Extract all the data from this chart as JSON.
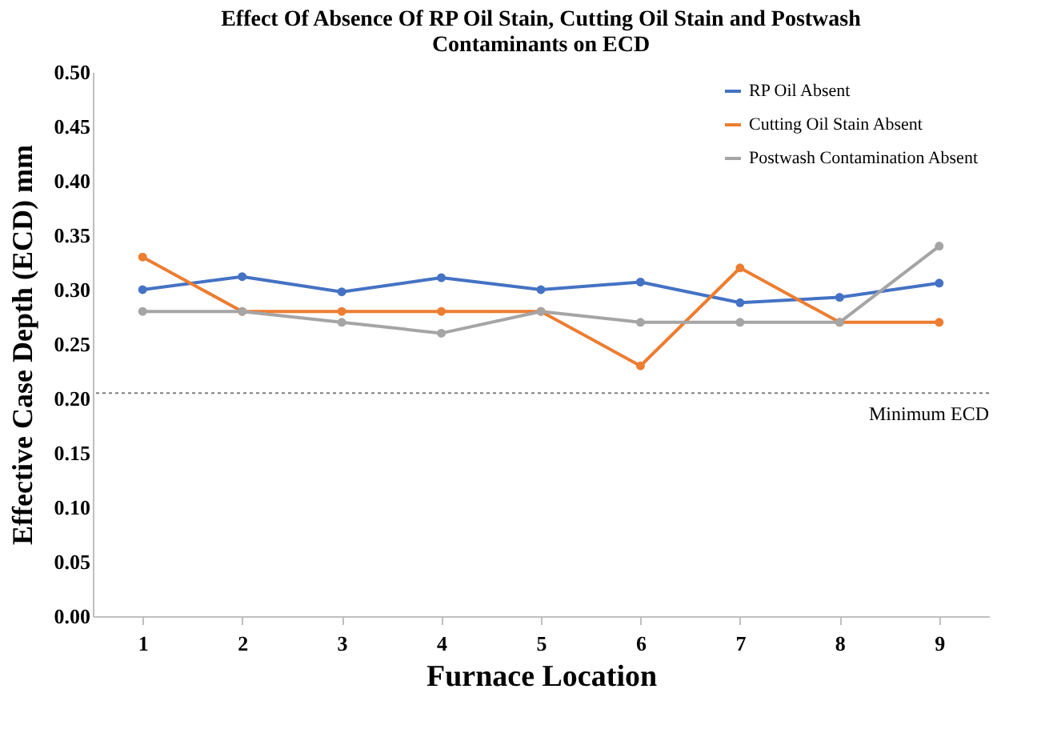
{
  "chart_data": {
    "type": "line",
    "title": [
      "Effect Of Absence Of RP Oil Stain, Cutting Oil Stain and Postwash",
      "Contaminants on ECD"
    ],
    "xlabel": "Furnace Location",
    "ylabel": "Effective Case Depth  (ECD) mm",
    "categories": [
      "1",
      "2",
      "3",
      "4",
      "5",
      "6",
      "7",
      "8",
      "9"
    ],
    "series": [
      {
        "name": "RP Oil Absent",
        "color": "#4472c4",
        "values": [
          0.3,
          0.312,
          0.298,
          0.311,
          0.3,
          0.307,
          0.288,
          0.293,
          0.306
        ]
      },
      {
        "name": "Cutting Oil Stain Absent",
        "color": "#ed7d31",
        "values": [
          0.33,
          0.28,
          0.28,
          0.28,
          0.28,
          0.23,
          0.32,
          0.27,
          0.27
        ]
      },
      {
        "name": "Postwash Contamination Absent",
        "color": "#a5a5a5",
        "values": [
          0.28,
          0.28,
          0.27,
          0.26,
          0.28,
          0.27,
          0.27,
          0.27,
          0.34
        ]
      }
    ],
    "ylim": [
      0,
      0.5
    ],
    "yticks": [
      {
        "value": 0,
        "label": "0.00"
      },
      {
        "value": 0.05,
        "label": "0.05"
      },
      {
        "value": 0.1,
        "label": "0.10"
      },
      {
        "value": 0.15,
        "label": "0.15"
      },
      {
        "value": 0.2,
        "label": "0.20"
      },
      {
        "value": 0.25,
        "label": "0.25"
      },
      {
        "value": 0.3,
        "label": "0.30"
      },
      {
        "value": 0.35,
        "label": "0.35"
      },
      {
        "value": 0.4,
        "label": "0.40"
      },
      {
        "value": 0.45,
        "label": "0.45"
      },
      {
        "value": 0.5,
        "label": "0.50"
      }
    ],
    "ref_lines": [
      {
        "axis": "y",
        "value": 0.205,
        "label": "Minimum ECD",
        "color": "#7f7f7f",
        "line_style": "dotted"
      }
    ],
    "grid": false,
    "legend": "top right",
    "marker": "circle",
    "line_style": "solid"
  }
}
